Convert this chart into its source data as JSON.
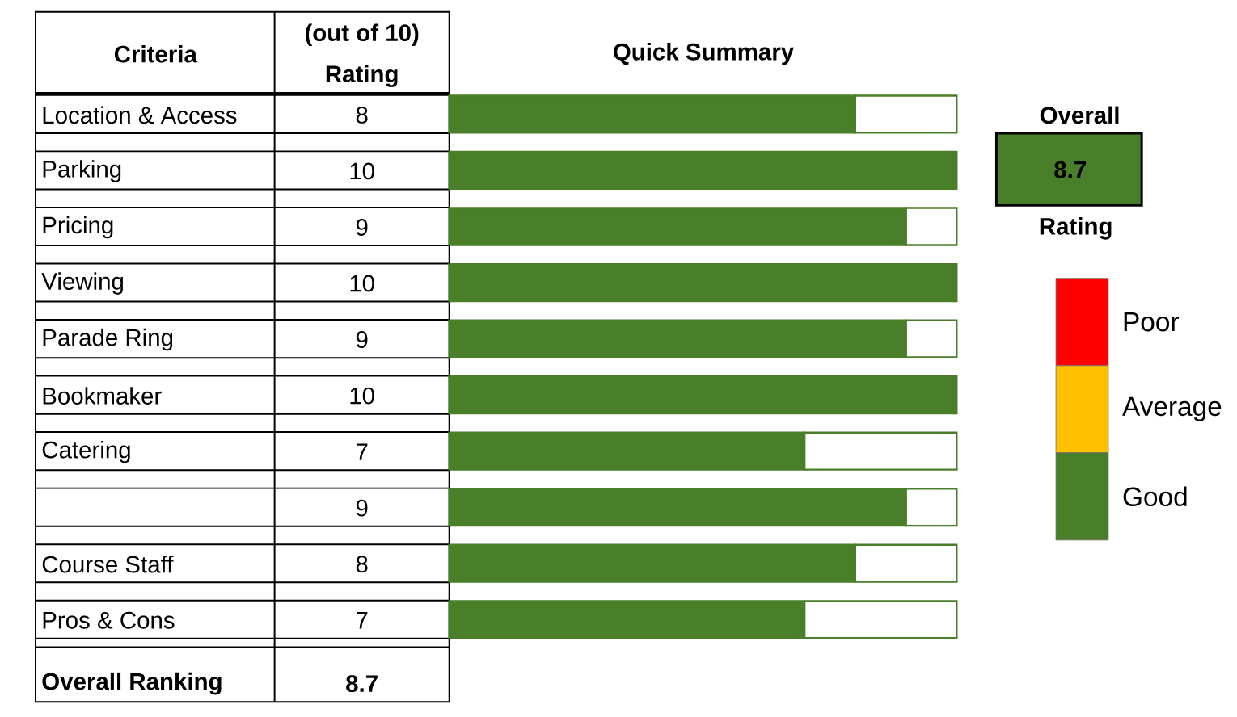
{
  "chart_data": [
    {
      "type": "bar",
      "orientation": "horizontal",
      "stacked": true,
      "title": "Quick Summary",
      "categories": [
        "Location & Access",
        "Parking",
        "Pricing",
        "Viewing",
        "Parade Ring",
        "Bookmaker",
        "Catering",
        null,
        "Course Staff",
        "Pros & Cons"
      ],
      "series": [
        {
          "color": "#4a7f2a",
          "values": [
            8,
            10,
            9,
            10,
            9,
            10,
            7,
            9,
            8,
            7
          ],
          "value_labels": [
            "8",
            "10",
            "9",
            "10",
            "9",
            "10",
            "7",
            "9",
            "8",
            "7"
          ]
        },
        {
          "color": "#ffffff",
          "values": [
            2,
            0,
            1,
            0,
            1,
            0,
            3,
            1,
            2,
            3
          ]
        }
      ],
      "xlim": [
        0,
        10
      ],
      "tick_labels": false,
      "annotations": [
        "Criteria",
        "(out of 10)",
        "Rating",
        "Overall Ranking",
        "8.7"
      ]
    },
    {
      "type": "other",
      "title": "Overall",
      "categories": [
        "Poor",
        "Average",
        "Good"
      ],
      "colors": [
        "#ff0000",
        "#ffc000",
        "#4a7f2a"
      ],
      "annotations": [
        "8.7",
        "Rating"
      ]
    }
  ]
}
